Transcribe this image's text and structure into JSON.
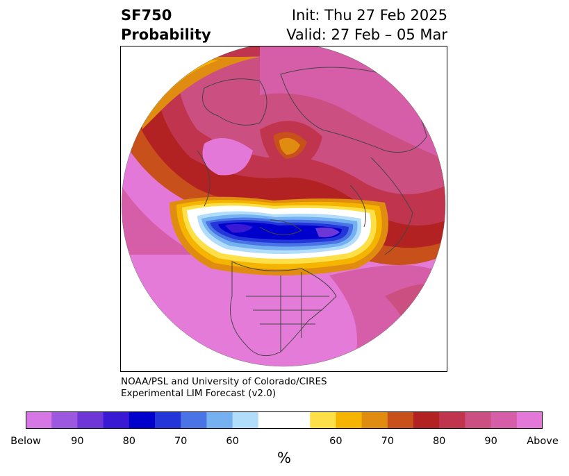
{
  "header": {
    "variable": "SF750",
    "subtitle": "Probability",
    "init": "Init: Thu 27 Feb 2025",
    "valid": "Valid: 27 Feb – 05 Mar"
  },
  "credit": {
    "line1": "NOAA/PSL and University of Colorado/CIRES",
    "line2": "Experimental LIM Forecast (v2.0)"
  },
  "colorbar": {
    "unit": "%",
    "colors": [
      "#d777e6",
      "#9d58e0",
      "#6d37d8",
      "#3919d3",
      "#0000cd",
      "#2436d8",
      "#4a74e6",
      "#75b1f0",
      "#b1dcfa",
      "#ffffff",
      "#ffffff",
      "#fde047",
      "#f5b400",
      "#e08c10",
      "#c8501a",
      "#b22222",
      "#c0354d",
      "#cc4f82",
      "#d65ea8",
      "#e478d8"
    ],
    "ticks": [
      {
        "label": "Below",
        "index": 0
      },
      {
        "label": "90",
        "index": 2
      },
      {
        "label": "80",
        "index": 4
      },
      {
        "label": "70",
        "index": 6
      },
      {
        "label": "60",
        "index": 8
      },
      {
        "label": "60",
        "index": 12
      },
      {
        "label": "70",
        "index": 14
      },
      {
        "label": "80",
        "index": 16
      },
      {
        "label": "90",
        "index": 18
      },
      {
        "label": "Above",
        "index": 20
      }
    ]
  },
  "map": {
    "projection": "polar stereographic (North Pole)",
    "field": "750 hPa streamfunction anomaly probability",
    "features": [
      "negative anomaly band over Arctic Ocean / northern Canada",
      "positive anomalies over Eurasia and Pacific / North America"
    ]
  }
}
